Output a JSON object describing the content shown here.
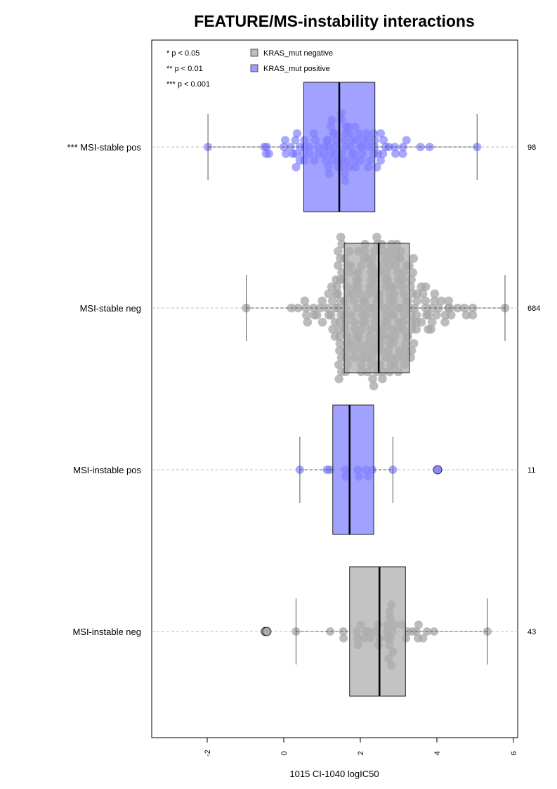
{
  "chart_data": {
    "type": "scatter",
    "title": "FEATURE/MS-instability interactions",
    "xlabel": "1015 CI-1040 logIC50",
    "ylabel": "",
    "xlim": [
      -3.3,
      6.0
    ],
    "x_ticks": [
      "-2",
      "0",
      "2",
      "4",
      "6"
    ],
    "legend": {
      "position": "top",
      "significance": [
        "* p < 0.05",
        "** p < 0.01",
        "*** p < 0.001"
      ],
      "entries": [
        {
          "label": "KRAS_mut negative",
          "color": "#bebebe"
        },
        {
          "label": "KRAS_mut positive",
          "color": "#9d9dff"
        }
      ]
    },
    "groups": [
      {
        "label": "*** MSI-stable pos",
        "n": "98",
        "kras": "positive",
        "color": "#9d9dff",
        "q1": 0.52,
        "median": 1.45,
        "q3": 2.38,
        "whisker_low": -1.98,
        "whisker_high": 5.05
      },
      {
        "label": "MSI-stable neg",
        "n": "684",
        "kras": "negative",
        "color": "#bebebe",
        "q1": 1.58,
        "median": 2.48,
        "q3": 3.28,
        "whisker_low": -0.98,
        "whisker_high": 5.78
      },
      {
        "label": "MSI-instable pos",
        "n": "11",
        "kras": "positive",
        "color": "#9d9dff",
        "q1": 1.28,
        "median": 1.72,
        "q3": 2.35,
        "whisker_low": 0.42,
        "whisker_high": 2.85,
        "outliers": [
          4.02
        ]
      },
      {
        "label": "MSI-instable neg",
        "n": "43",
        "kras": "negative",
        "color": "#bebebe",
        "q1": 1.72,
        "median": 2.5,
        "q3": 3.18,
        "whisker_low": 0.32,
        "whisker_high": 5.32,
        "outliers": [
          -0.48,
          -0.44
        ]
      }
    ]
  }
}
